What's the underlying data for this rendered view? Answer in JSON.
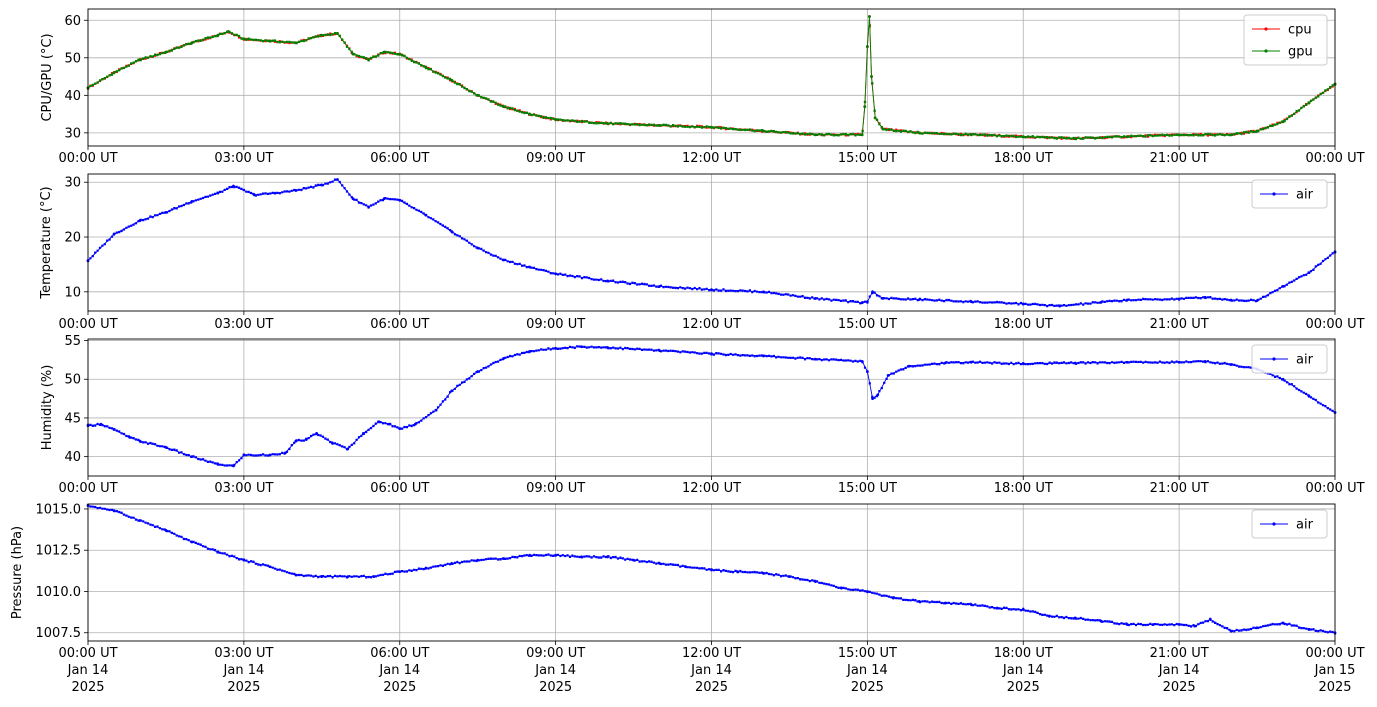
{
  "x_ticks": [
    "00:00 UT",
    "03:00 UT",
    "06:00 UT",
    "09:00 UT",
    "12:00 UT",
    "15:00 UT",
    "18:00 UT",
    "21:00 UT",
    "00:00 UT"
  ],
  "x_ticks_bottom_date": [
    "Jan 14",
    "Jan 14",
    "Jan 14",
    "Jan 14",
    "Jan 14",
    "Jan 14",
    "Jan 14",
    "Jan 14",
    "Jan 15"
  ],
  "x_ticks_bottom_year": [
    "2025",
    "2025",
    "2025",
    "2025",
    "2025",
    "2025",
    "2025",
    "2025",
    "2025"
  ],
  "colors": {
    "cpu": "#ff0000",
    "gpu": "#008000",
    "air": "#0000ff"
  },
  "chart_data": [
    {
      "type": "line",
      "ylabel": "CPU/GPU (°C)",
      "xlim": [
        "2025-01-14T00:00Z",
        "2025-01-15T00:00Z"
      ],
      "ylim": [
        26.5,
        63
      ],
      "yticks": [
        30,
        40,
        50,
        60
      ],
      "grid": true,
      "legend": "top-right",
      "x_hours": [
        0,
        0.5,
        1,
        1.5,
        2,
        2.5,
        2.7,
        3,
        3.5,
        4,
        4.5,
        4.8,
        5.1,
        5.4,
        5.7,
        6,
        6.5,
        7,
        7.5,
        8,
        8.5,
        9,
        10,
        11,
        12,
        13,
        14,
        14.9,
        14.95,
        15,
        15.04,
        15.08,
        15.15,
        15.3,
        16,
        17,
        18,
        19,
        20,
        21,
        22,
        22.5,
        23,
        23.5,
        24
      ],
      "series": [
        {
          "name": "cpu",
          "values": [
            42,
            46,
            49.5,
            51.5,
            54,
            56,
            57,
            55,
            54.5,
            54,
            56,
            56.5,
            51,
            49.5,
            51.5,
            51,
            47.5,
            44,
            40,
            37,
            35,
            33.5,
            32.5,
            32,
            31.5,
            30.5,
            29.5,
            29.5,
            37,
            53,
            61,
            45,
            34,
            31,
            30,
            29.5,
            29,
            28.5,
            29,
            29.5,
            29.5,
            30.5,
            33,
            38,
            43
          ]
        },
        {
          "name": "gpu",
          "values": [
            42,
            46,
            49.5,
            51.5,
            54,
            56,
            57,
            55,
            54.5,
            54,
            56,
            56.5,
            51,
            49.5,
            51.5,
            51,
            47.5,
            44,
            40,
            37,
            35,
            33.5,
            32.5,
            32,
            31.5,
            30.5,
            29.5,
            29.5,
            37,
            53,
            61,
            45,
            34,
            31,
            30,
            29.5,
            29,
            28.5,
            29,
            29.5,
            29.5,
            30.5,
            33,
            38,
            43
          ]
        }
      ]
    },
    {
      "type": "line",
      "ylabel": "Temperature (°C)",
      "xlim": [
        "2025-01-14T00:00Z",
        "2025-01-15T00:00Z"
      ],
      "ylim": [
        6.5,
        31.5
      ],
      "yticks": [
        10,
        20,
        30
      ],
      "grid": true,
      "legend": "top-right",
      "x_hours": [
        0,
        0.5,
        1,
        1.5,
        2,
        2.5,
        2.8,
        3.2,
        3.6,
        4,
        4.5,
        4.8,
        5.1,
        5.4,
        5.7,
        6,
        6.5,
        7,
        7.5,
        8,
        8.5,
        9,
        10,
        11,
        12,
        13,
        14,
        14.9,
        15,
        15.1,
        15.3,
        16,
        17,
        18,
        18.7,
        19.5,
        20,
        21,
        21.5,
        22,
        22.5,
        23,
        23.5,
        24
      ],
      "series": [
        {
          "name": "air",
          "values": [
            15.7,
            20.5,
            23,
            24.5,
            26.5,
            28,
            29.3,
            27.7,
            28,
            28.5,
            29.5,
            30.5,
            27,
            25.5,
            27,
            26.7,
            24,
            21,
            18,
            15.8,
            14.5,
            13.3,
            12,
            11,
            10.4,
            10,
            8.8,
            8,
            8.2,
            10,
            8.8,
            8.6,
            8.2,
            7.8,
            7.4,
            8.1,
            8.5,
            8.7,
            9,
            8.5,
            8.4,
            11,
            13.5,
            17.3
          ]
        }
      ]
    },
    {
      "type": "line",
      "ylabel": "Humidity (%)",
      "xlim": [
        "2025-01-14T00:00Z",
        "2025-01-15T00:00Z"
      ],
      "ylim": [
        37.5,
        55.2
      ],
      "yticks": [
        40,
        45,
        50,
        55
      ],
      "grid": true,
      "legend": "top-right",
      "x_hours": [
        0,
        0.25,
        0.5,
        0.8,
        1,
        1.5,
        2,
        2.5,
        2.8,
        3,
        3.5,
        3.8,
        4,
        4.2,
        4.4,
        4.7,
        5,
        5.3,
        5.6,
        5.8,
        6,
        6.3,
        6.7,
        7,
        7.5,
        8,
        8.5,
        9,
        9.5,
        10,
        11,
        12,
        13,
        14,
        14.9,
        15,
        15.1,
        15.2,
        15.4,
        15.8,
        16.5,
        17,
        18,
        19,
        20,
        21,
        21.5,
        22,
        22.5,
        23,
        23.5,
        24
      ],
      "series": [
        {
          "name": "air",
          "values": [
            44,
            44.2,
            43.5,
            42.5,
            42,
            41.2,
            40,
            39,
            38.8,
            40.2,
            40.2,
            40.5,
            42,
            42.2,
            43,
            41.8,
            41,
            43,
            44.5,
            44.2,
            43.6,
            44.2,
            46,
            48.5,
            51,
            52.7,
            53.6,
            54,
            54.2,
            54.1,
            53.7,
            53.3,
            53,
            52.6,
            52.3,
            51,
            47.5,
            48,
            50.5,
            51.7,
            52.1,
            52.2,
            52,
            52.1,
            52.2,
            52.2,
            52.3,
            51.9,
            51.3,
            50,
            47.8,
            45.7
          ]
        }
      ]
    },
    {
      "type": "line",
      "ylabel": "Pressure (hPa)",
      "xlim": [
        "2025-01-14T00:00Z",
        "2025-01-15T00:00Z"
      ],
      "ylim": [
        1007.0,
        1015.3
      ],
      "yticks": [
        1007.5,
        1010.0,
        1012.5,
        1015.0
      ],
      "ytick_labels": [
        "1007.5",
        "1010.0",
        "1012.5",
        "1015.0"
      ],
      "grid": true,
      "legend": "top-right",
      "x_hours": [
        0,
        0.5,
        1,
        1.5,
        2,
        2.5,
        3,
        3.5,
        4,
        4.5,
        5,
        5.5,
        6,
        6.5,
        7,
        7.5,
        8,
        8.5,
        9,
        9.5,
        10,
        10.5,
        11,
        11.5,
        12,
        12.5,
        13,
        13.5,
        14,
        14.5,
        15,
        15.5,
        16,
        16.5,
        17,
        17.5,
        18,
        18.5,
        19,
        19.5,
        20,
        20.5,
        21,
        21.3,
        21.6,
        22,
        22.5,
        23,
        23.5,
        24
      ],
      "series": [
        {
          "name": "air",
          "values": [
            1015.2,
            1014.9,
            1014.3,
            1013.7,
            1013.0,
            1012.4,
            1011.9,
            1011.5,
            1011.0,
            1010.9,
            1010.9,
            1010.9,
            1011.2,
            1011.4,
            1011.7,
            1011.9,
            1012.0,
            1012.2,
            1012.2,
            1012.1,
            1012.1,
            1011.9,
            1011.7,
            1011.5,
            1011.3,
            1011.2,
            1011.1,
            1010.9,
            1010.6,
            1010.2,
            1010.0,
            1009.6,
            1009.4,
            1009.3,
            1009.2,
            1009.0,
            1008.9,
            1008.5,
            1008.4,
            1008.2,
            1008.0,
            1008.0,
            1008.0,
            1007.9,
            1008.3,
            1007.6,
            1007.8,
            1008.1,
            1007.7,
            1007.5
          ]
        }
      ]
    }
  ]
}
